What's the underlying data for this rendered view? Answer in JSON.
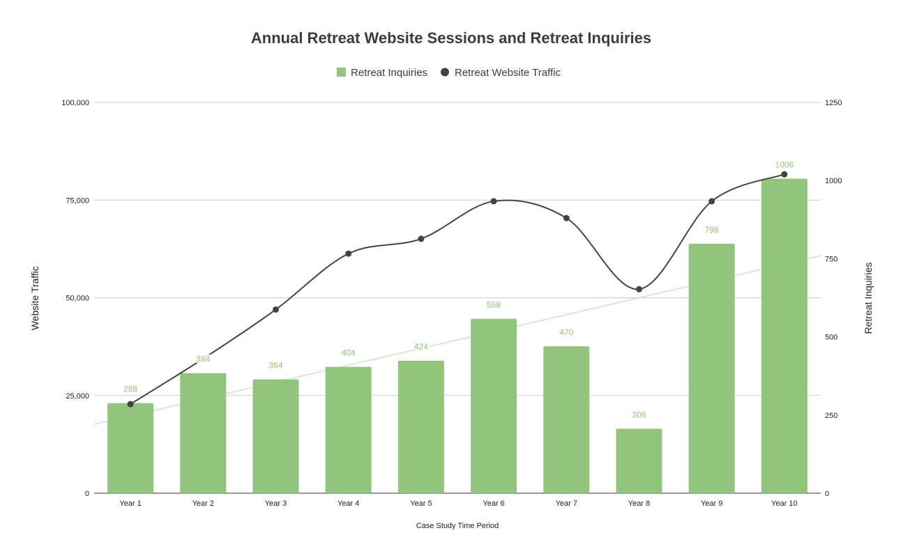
{
  "chart_data": {
    "type": "bar+line",
    "title": "Annual Retreat Website Sessions and Retreat Inquiries",
    "xlabel": "Case Study Time Period",
    "ylabel_left": "Website Traffic",
    "ylabel_right": "Retreat Inquiries",
    "categories": [
      "Year 1",
      "Year 2",
      "Year 3",
      "Year 4",
      "Year 5",
      "Year 6",
      "Year 7",
      "Year 8",
      "Year 9",
      "Year 10"
    ],
    "ylim_left": [
      0,
      100000
    ],
    "yticks_left": [
      "0",
      "25,000",
      "50,000",
      "75,000",
      "100,000"
    ],
    "ylim_right": [
      0,
      1250
    ],
    "yticks_right": [
      "0",
      "250",
      "500",
      "750",
      "1000",
      "1250"
    ],
    "grid": true,
    "legend_position": "top",
    "series": [
      {
        "name": "Retreat Inquiries",
        "type": "bar",
        "axis": "right",
        "color": "#93c47d",
        "values": [
          288,
          384,
          364,
          404,
          424,
          558,
          470,
          206,
          798,
          1006
        ],
        "trendline": "linear",
        "trendline_color": "#d9e8d2"
      },
      {
        "name": "Retreat Website Traffic",
        "type": "smooth-line",
        "axis": "left",
        "color": "#434343",
        "values": [
          22800,
          34400,
          47000,
          61300,
          65100,
          74700,
          70400,
          52200,
          74700,
          81600
        ]
      }
    ]
  }
}
